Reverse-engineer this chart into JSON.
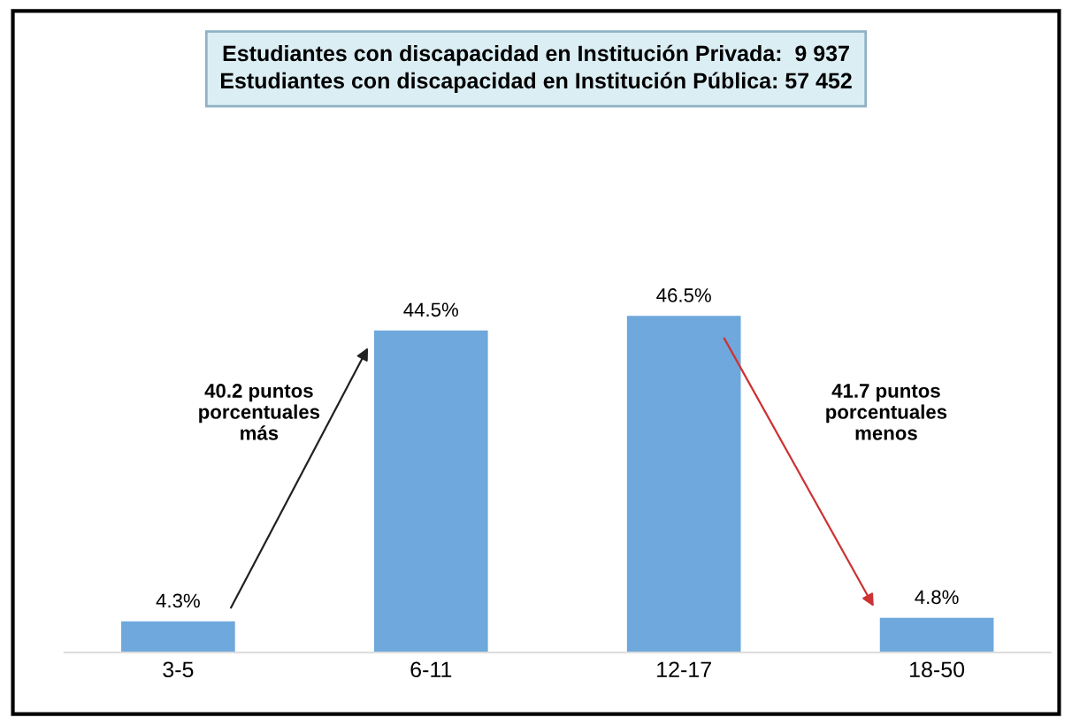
{
  "chart_data": {
    "type": "bar",
    "categories": [
      "3-5",
      "6-11",
      "12-17",
      "18-50"
    ],
    "values": [
      4.3,
      44.5,
      46.5,
      4.8
    ],
    "value_labels": [
      "4.3%",
      "44.5%",
      "46.5%",
      "4.8%"
    ],
    "color": "#6fa8dc",
    "annotations": [
      "Estudiantes con discapacidad en Institución Privada:  9 937",
      "Estudiantes con discapacidad en Institución Pública: 57 452",
      "40.2 puntos\nporcentuales\nmás",
      "41.7 puntos\nporcentuales\nmenos"
    ],
    "grid": false,
    "legend": false
  }
}
